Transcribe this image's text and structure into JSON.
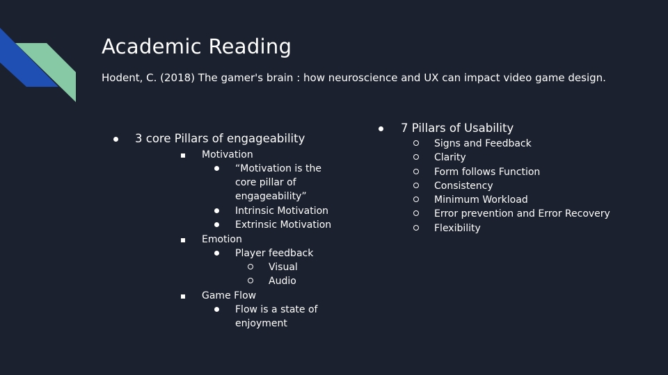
{
  "slide": {
    "title": "Academic Reading",
    "subtitle": "Hodent, C. (2018) The gamer's brain : how neuroscience and UX can impact video game design.",
    "accent_colors": {
      "background": "#1b212e",
      "blue": "#1f4fb3",
      "green": "#86c9a4"
    }
  },
  "left": {
    "heading": "3 core Pillars of engageability",
    "motivation": {
      "label": "Motivation",
      "quote": "“Motivation is the core pillar of engageability”",
      "intrinsic": "Intrinsic Motivation",
      "extrinsic": "Extrinsic Motivation"
    },
    "emotion": {
      "label": "Emotion",
      "player_feedback": "Player feedback",
      "visual": "Visual",
      "audio": "Audio"
    },
    "game_flow": {
      "label": "Game Flow",
      "flow": "Flow is a state of enjoyment"
    }
  },
  "right": {
    "heading": "7 Pillars of Usability",
    "items": [
      "Signs and Feedback",
      "Clarity",
      "Form follows Function",
      "Consistency",
      "Minimum Workload",
      "Error prevention and Error Recovery",
      "Flexibility"
    ]
  }
}
